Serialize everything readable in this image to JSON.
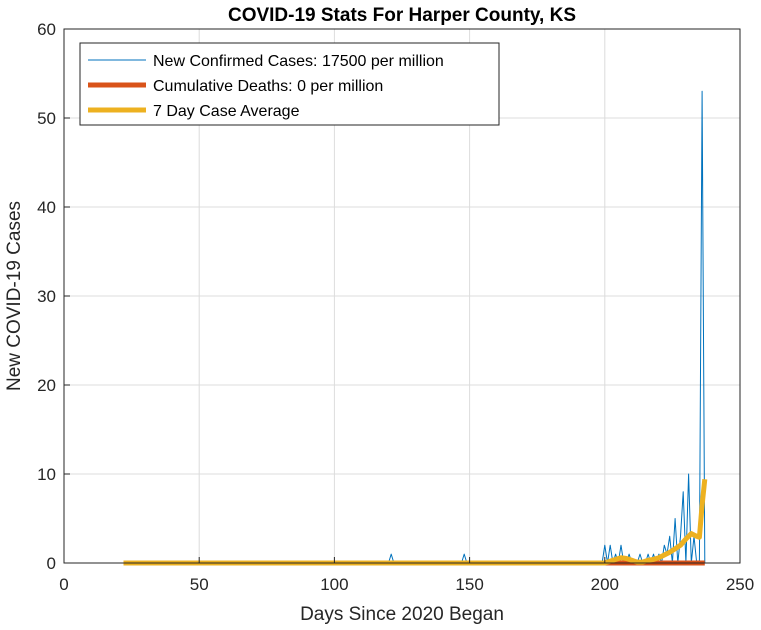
{
  "chart_data": {
    "type": "line",
    "title": "COVID-19 Stats For Harper County, KS",
    "xlabel": "Days Since 2020 Began",
    "ylabel": "New COVID-19 Cases",
    "xlim": [
      0,
      250
    ],
    "ylim": [
      0,
      60
    ],
    "xticks": [
      0,
      50,
      100,
      150,
      200,
      250
    ],
    "yticks": [
      0,
      10,
      20,
      30,
      40,
      50,
      60
    ],
    "xtick_labels": [
      "0",
      "50",
      "100",
      "150",
      "200",
      "250"
    ],
    "ytick_labels": [
      "0",
      "10",
      "20",
      "30",
      "40",
      "50",
      "60"
    ],
    "grid": true,
    "legend_position": "top-left",
    "series": [
      {
        "name": "New Confirmed Cases: 17500 per million",
        "color": "#0072BD",
        "style": "thin",
        "x": [
          22,
          120,
          121,
          122,
          147,
          148,
          149,
          150,
          198,
          199,
          200,
          201,
          202,
          203,
          204,
          205,
          206,
          207,
          208,
          209,
          210,
          211,
          212,
          213,
          214,
          215,
          216,
          217,
          218,
          219,
          220,
          221,
          222,
          223,
          224,
          225,
          226,
          227,
          228,
          229,
          230,
          231,
          232,
          233,
          234,
          235,
          236,
          237
        ],
        "y": [
          0,
          0,
          1,
          0,
          0,
          1,
          0,
          0,
          0,
          0,
          2,
          0,
          2,
          0,
          1,
          0,
          2,
          0,
          0,
          1,
          0,
          0,
          0,
          1,
          0,
          0,
          1,
          0,
          1,
          0,
          1,
          0,
          2,
          1,
          3,
          0,
          5,
          0,
          3,
          8,
          0,
          10,
          0,
          3,
          0,
          0,
          53,
          0
        ]
      },
      {
        "name": "Cumulative Deaths: 0 per million",
        "color": "#D95319",
        "style": "thick",
        "x": [
          22,
          237
        ],
        "y": [
          0,
          0
        ]
      },
      {
        "name": "7 Day Case Average",
        "color": "#EDB120",
        "style": "thick",
        "x": [
          22,
          150,
          200,
          203,
          206,
          208,
          210,
          212,
          214,
          216,
          218,
          220,
          222,
          224,
          226,
          228,
          230,
          232,
          234,
          235,
          236,
          237
        ],
        "y": [
          0,
          0,
          0,
          0.3,
          0.6,
          0.5,
          0.3,
          0.1,
          0.1,
          0.3,
          0.4,
          0.6,
          0.9,
          1.2,
          1.6,
          2.0,
          2.7,
          3.3,
          3.0,
          2.9,
          6.5,
          9.4
        ]
      }
    ]
  }
}
